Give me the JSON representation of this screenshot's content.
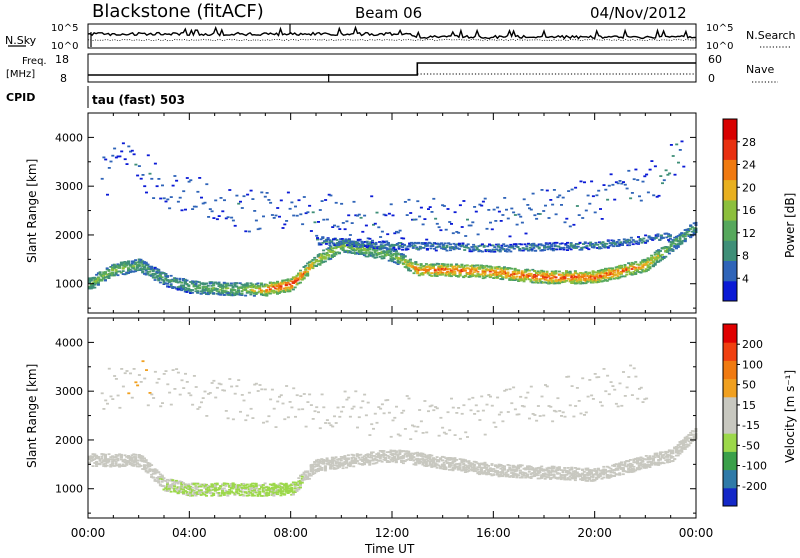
{
  "header": {
    "title": "Blackstone (fitACF)",
    "beam": "Beam 06",
    "date": "04/Nov/2012"
  },
  "strip_noise": {
    "left_label": "N.Sky",
    "right_label": "N.Search",
    "left_ticks": [
      "10^5",
      "10^0"
    ],
    "right_ticks": [
      "10^5",
      "10^0"
    ]
  },
  "strip_freq": {
    "left_label_top": "Freq.",
    "left_label_bottom": "[MHz]",
    "right_label": "Nave",
    "left_ticks": [
      "18",
      "8"
    ],
    "right_ticks": [
      "60",
      "0"
    ],
    "step_time_hours": 13.0
  },
  "cpid": {
    "label": "CPID",
    "text": "tau (fast) 503"
  },
  "x_axis": {
    "label": "Time UT",
    "ticks": [
      "00:00",
      "04:00",
      "08:00",
      "12:00",
      "16:00",
      "20:00",
      "00:00"
    ],
    "range_hours": [
      0,
      24
    ]
  },
  "colors": {
    "power_scale": [
      "#0a1ad6",
      "#2f64b8",
      "#3f8f78",
      "#56a85c",
      "#8cbf3c",
      "#e8b020",
      "#f07a10",
      "#e83010",
      "#d80000"
    ],
    "velocity_scale": [
      "#e00000",
      "#f04010",
      "#f07a10",
      "#f0a020",
      "#c8c8c0",
      "#c8c8c0",
      "#9cd84a",
      "#3aa04a",
      "#2f7aa8",
      "#1428c8"
    ]
  },
  "chart_data": [
    {
      "type": "heatmap",
      "panel": "power",
      "xlabel": "",
      "ylabel": "Slant Range [km]",
      "yticks": [
        "1000",
        "2000",
        "3000",
        "4000"
      ],
      "ylim": [
        400,
        4500
      ],
      "colorbar_label": "Power [dB]",
      "colorbar_ticks": [
        "4",
        "8",
        "12",
        "16",
        "20",
        "24",
        "28"
      ],
      "colorbar_range": [
        0,
        32
      ],
      "features": [
        {
          "name": "main_band",
          "time_hours": [
            0,
            1,
            2,
            3,
            4,
            6,
            7,
            8,
            9,
            10,
            11,
            12,
            13,
            14,
            16,
            18,
            20,
            22,
            23,
            24
          ],
          "range_km": [
            1000,
            1300,
            1400,
            1100,
            950,
            900,
            900,
            1000,
            1500,
            1800,
            1700,
            1600,
            1300,
            1300,
            1250,
            1150,
            1150,
            1400,
            1800,
            2200
          ],
          "power_db": [
            14,
            16,
            12,
            10,
            12,
            14,
            24,
            28,
            18,
            16,
            14,
            14,
            24,
            26,
            24,
            26,
            26,
            22,
            12,
            10
          ]
        },
        {
          "name": "upper_band",
          "time_hours": [
            9,
            12,
            16,
            20,
            23
          ],
          "range_km": [
            1900,
            1800,
            1750,
            1800,
            2000
          ],
          "power_db": [
            8,
            8,
            8,
            8,
            8
          ]
        },
        {
          "name": "far_range_scatter",
          "time_hours": [
            0.5,
            1.5,
            3,
            6,
            14,
            18,
            22,
            23.5
          ],
          "range_km": [
            3200,
            3600,
            3000,
            2500,
            2300,
            2500,
            3000,
            3700
          ],
          "power_db": [
            6,
            6,
            6,
            6,
            6,
            6,
            6,
            8
          ]
        }
      ]
    },
    {
      "type": "heatmap",
      "panel": "velocity",
      "xlabel": "Time UT",
      "ylabel": "Slant Range [km]",
      "yticks": [
        "1000",
        "2000",
        "3000",
        "4000"
      ],
      "ylim": [
        400,
        4500
      ],
      "colorbar_label": "Velocity [m s⁻¹]",
      "colorbar_ticks": [
        "200",
        "100",
        "50",
        "15",
        "-15",
        "-50",
        "-100",
        "-200"
      ],
      "colorbar_range": [
        -250,
        250
      ],
      "features": [
        {
          "name": "main_band",
          "time_hours": [
            0,
            2,
            3,
            4,
            6,
            7,
            8,
            9,
            12,
            16,
            20,
            23,
            24
          ],
          "range_km": [
            1600,
            1600,
            1100,
            1000,
            1000,
            1000,
            1000,
            1500,
            1700,
            1400,
            1300,
            1700,
            2200
          ],
          "velocity_ms": [
            0,
            0,
            -40,
            -50,
            -60,
            -60,
            -70,
            0,
            0,
            0,
            0,
            0,
            0
          ]
        },
        {
          "name": "sparse_scatter",
          "time_hours": [
            0.5,
            2,
            6,
            14,
            22
          ],
          "range_km": [
            3000,
            3200,
            2800,
            2400,
            3200
          ],
          "velocity_ms": [
            0,
            50,
            -20,
            30,
            0
          ]
        }
      ]
    }
  ]
}
